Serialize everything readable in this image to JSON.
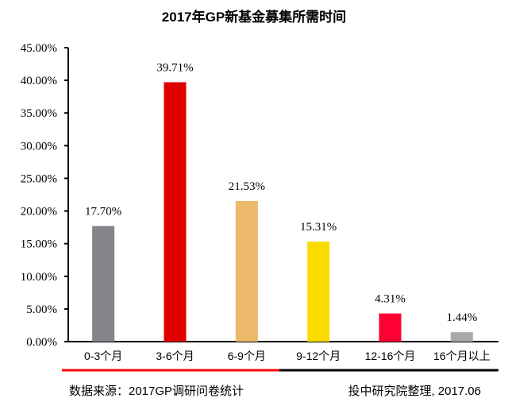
{
  "chart_data": {
    "type": "bar",
    "title": "2017年GP新基金募集所需时间",
    "categories": [
      "0-3个月",
      "3-6个月",
      "6-9个月",
      "9-12个月",
      "12-16个月",
      "16个月以上"
    ],
    "values": [
      17.7,
      39.71,
      21.53,
      15.31,
      4.31,
      1.44
    ],
    "data_labels": [
      "17.70%",
      "39.71%",
      "21.53%",
      "15.31%",
      "4.31%",
      "1.44%"
    ],
    "colors": [
      "#858488",
      "#e00000",
      "#ecb86a",
      "#fbdc00",
      "#ff0033",
      "#a9a9ad"
    ],
    "ylim": [
      0,
      45
    ],
    "yticks": [
      0,
      5,
      10,
      15,
      20,
      25,
      30,
      35,
      40,
      45
    ],
    "ytick_labels": [
      "0.00%",
      "5.00%",
      "10.00%",
      "15.00%",
      "20.00%",
      "25.00%",
      "30.00%",
      "35.00%",
      "40.00%",
      "45.00%"
    ],
    "xlabel": "",
    "ylabel": "",
    "grid": false,
    "legend": "none"
  },
  "footer": {
    "source": "数据来源：2017GP调研问卷统计",
    "credit": "投中研究院整理, 2017.06"
  }
}
